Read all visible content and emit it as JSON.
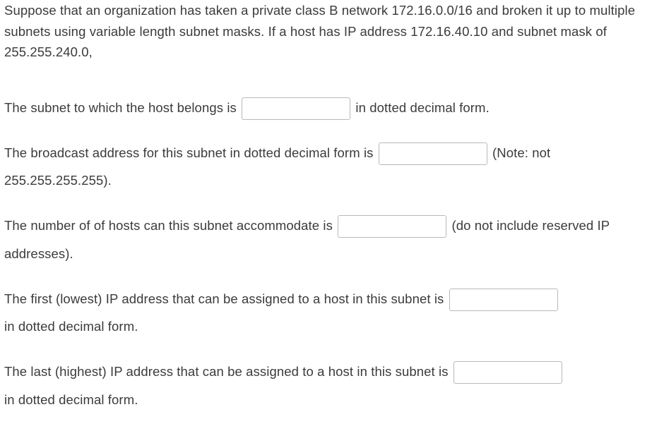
{
  "intro": "Suppose that an organization has taken a  private class B network 172.16.0.0/16 and broken it up to multiple subnets using variable length subnet masks.  If a host has IP address 172.16.40.10 and subnet mask of 255.255.240.0,",
  "q1": {
    "before": "The subnet to which the host belongs is ",
    "after": " in dotted decimal form."
  },
  "q2": {
    "before": "The broadcast address for this subnet in dotted decimal form is ",
    "after": " (Note: not 255.255.255.255)."
  },
  "q3": {
    "before": "The number of of hosts can this subnet accommodate is ",
    "after": " (do not include reserved IP addresses)."
  },
  "q4": {
    "before": "The first (lowest) IP address  that can be assigned to a host in this subnet is ",
    "after": " in dotted decimal form."
  },
  "q5": {
    "before": "The last (highest) IP address  that can be assigned to a host in this subnet is ",
    "after": " in dotted decimal form."
  }
}
